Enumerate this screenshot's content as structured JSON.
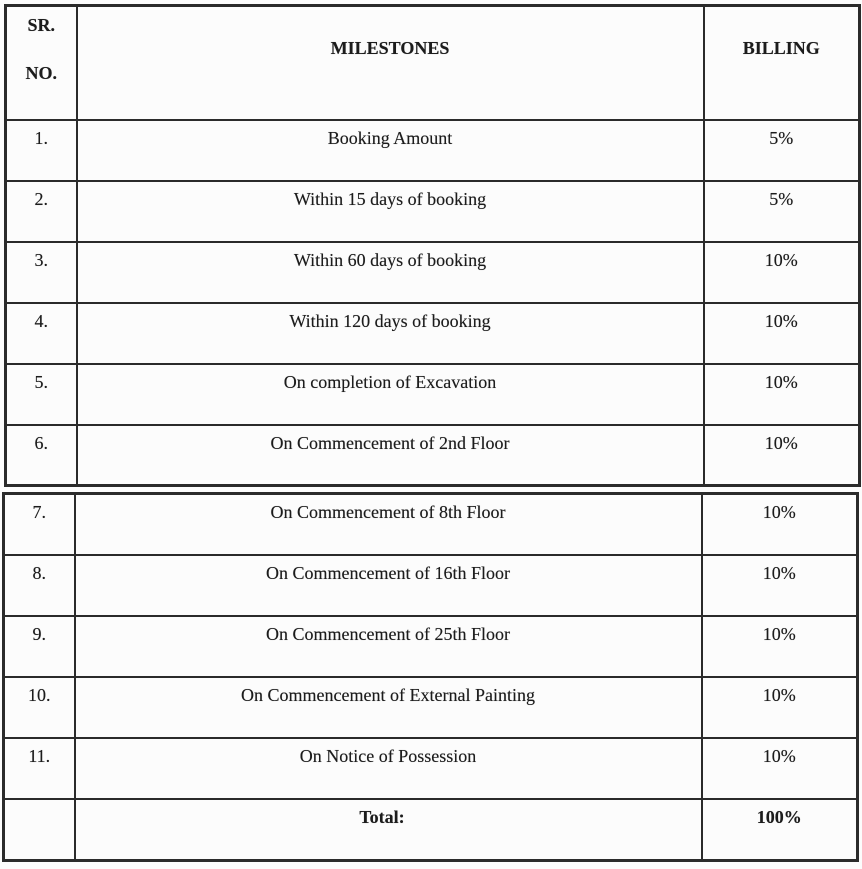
{
  "document": {
    "table": {
      "headers": {
        "sr_line1": "SR.",
        "sr_line2": "NO.",
        "milestones": "MILESTONES",
        "billing": "BILLING"
      },
      "rows": [
        {
          "sr": "1.",
          "milestone": "Booking Amount",
          "billing": "5%"
        },
        {
          "sr": "2.",
          "milestone": "Within 15 days of booking",
          "billing": "5%"
        },
        {
          "sr": "3.",
          "milestone": "Within 60 days of booking",
          "billing": "10%"
        },
        {
          "sr": "4.",
          "milestone": "Within 120 days of booking",
          "billing": "10%"
        },
        {
          "sr": "5.",
          "milestone": "On completion of Excavation",
          "billing": "10%"
        },
        {
          "sr": "6.",
          "milestone": "On Commencement of 2nd Floor",
          "billing": "10%"
        },
        {
          "sr": "7.",
          "milestone": "On Commencement of 8th Floor",
          "billing": "10%"
        },
        {
          "sr": "8.",
          "milestone": "On Commencement of 16th Floor",
          "billing": "10%"
        },
        {
          "sr": "9.",
          "milestone": "On Commencement of 25th Floor",
          "billing": "10%"
        },
        {
          "sr": "10.",
          "milestone": "On Commencement of External Painting",
          "billing": "10%"
        },
        {
          "sr": "11.",
          "milestone": "On Notice of Possession",
          "billing": "10%"
        }
      ],
      "total": {
        "label": "Total:",
        "value": "100%"
      }
    },
    "colors": {
      "border": "#2b2b2b",
      "text": "#1c1c1c",
      "background": "#fcfcfc"
    }
  }
}
